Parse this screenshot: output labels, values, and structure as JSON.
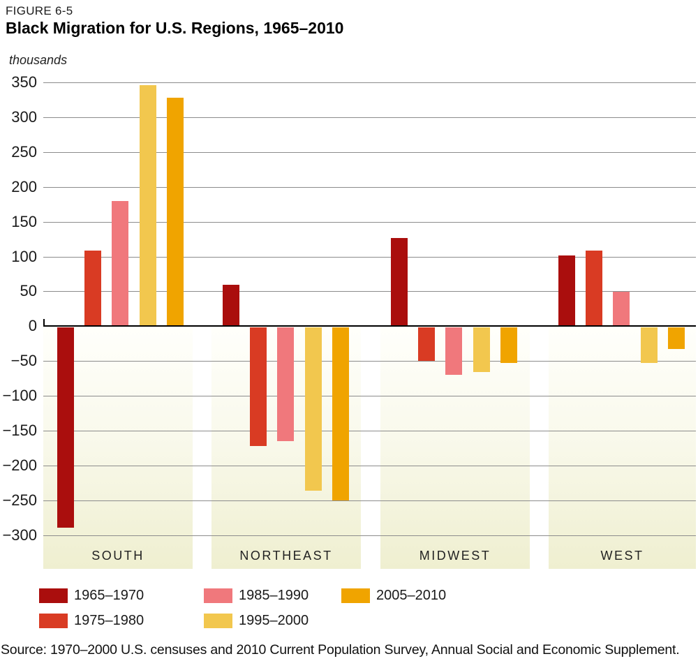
{
  "figure": {
    "label": "FIGURE 6-5",
    "title": "Black Migration for U.S. Regions, 1965–2010",
    "units": "thousands",
    "source": "Source: 1970–2000 U.S. censuses and 2010 Current Population Survey, Annual Social and Economic Supplement."
  },
  "chart_data": {
    "type": "bar",
    "title": "Black Migration for U.S. Regions, 1965–2010",
    "ylabel": "thousands",
    "ylim": [
      -300,
      350
    ],
    "ytick_step": 50,
    "grid": true,
    "legend_position": "bottom",
    "categories": [
      "SOUTH",
      "NORTHEAST",
      "MIDWEST",
      "WEST"
    ],
    "series": [
      {
        "name": "1965–1970",
        "color": "#AA0E0D",
        "values": [
          -287,
          59,
          127,
          102
        ]
      },
      {
        "name": "1975–1980",
        "color": "#D93B23",
        "values": [
          109,
          -170,
          -48,
          109
        ]
      },
      {
        "name": "1985–1990",
        "color": "#F0787C",
        "values": [
          180,
          -163,
          -68,
          49
        ]
      },
      {
        "name": "1995–2000",
        "color": "#F2C74E",
        "values": [
          346,
          -234,
          -64,
          -51
        ]
      },
      {
        "name": "2005–2010",
        "color": "#F0A400",
        "values": [
          328,
          -248,
          -51,
          -31
        ]
      }
    ],
    "band_colors": [
      "#FFFFFB",
      "#EFEFD0"
    ],
    "axis_color": "#000000",
    "gridline_color": "#8C8C8C"
  }
}
